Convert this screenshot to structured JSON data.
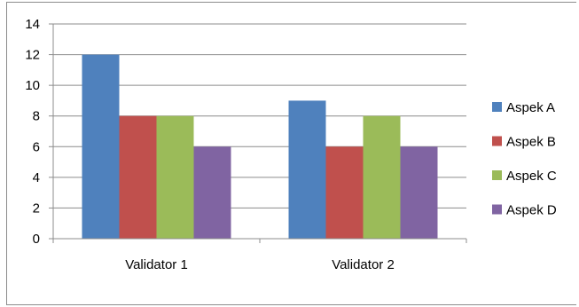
{
  "chart_data": {
    "type": "bar",
    "categories": [
      "Validator 1",
      "Validator 2"
    ],
    "series": [
      {
        "name": "Aspek A",
        "color": "#4f81bd",
        "values": [
          12,
          9
        ]
      },
      {
        "name": "Aspek B",
        "color": "#c0504d",
        "values": [
          8,
          6
        ]
      },
      {
        "name": "Aspek C",
        "color": "#9bbb59",
        "values": [
          8,
          8
        ]
      },
      {
        "name": "Aspek D",
        "color": "#8064a2",
        "values": [
          6,
          6
        ]
      }
    ],
    "title": "",
    "xlabel": "",
    "ylabel": "",
    "ylim": [
      0,
      14
    ],
    "yticks": [
      0,
      2,
      4,
      6,
      8,
      10,
      12,
      14
    ],
    "grid": true,
    "legend_position": "right"
  }
}
